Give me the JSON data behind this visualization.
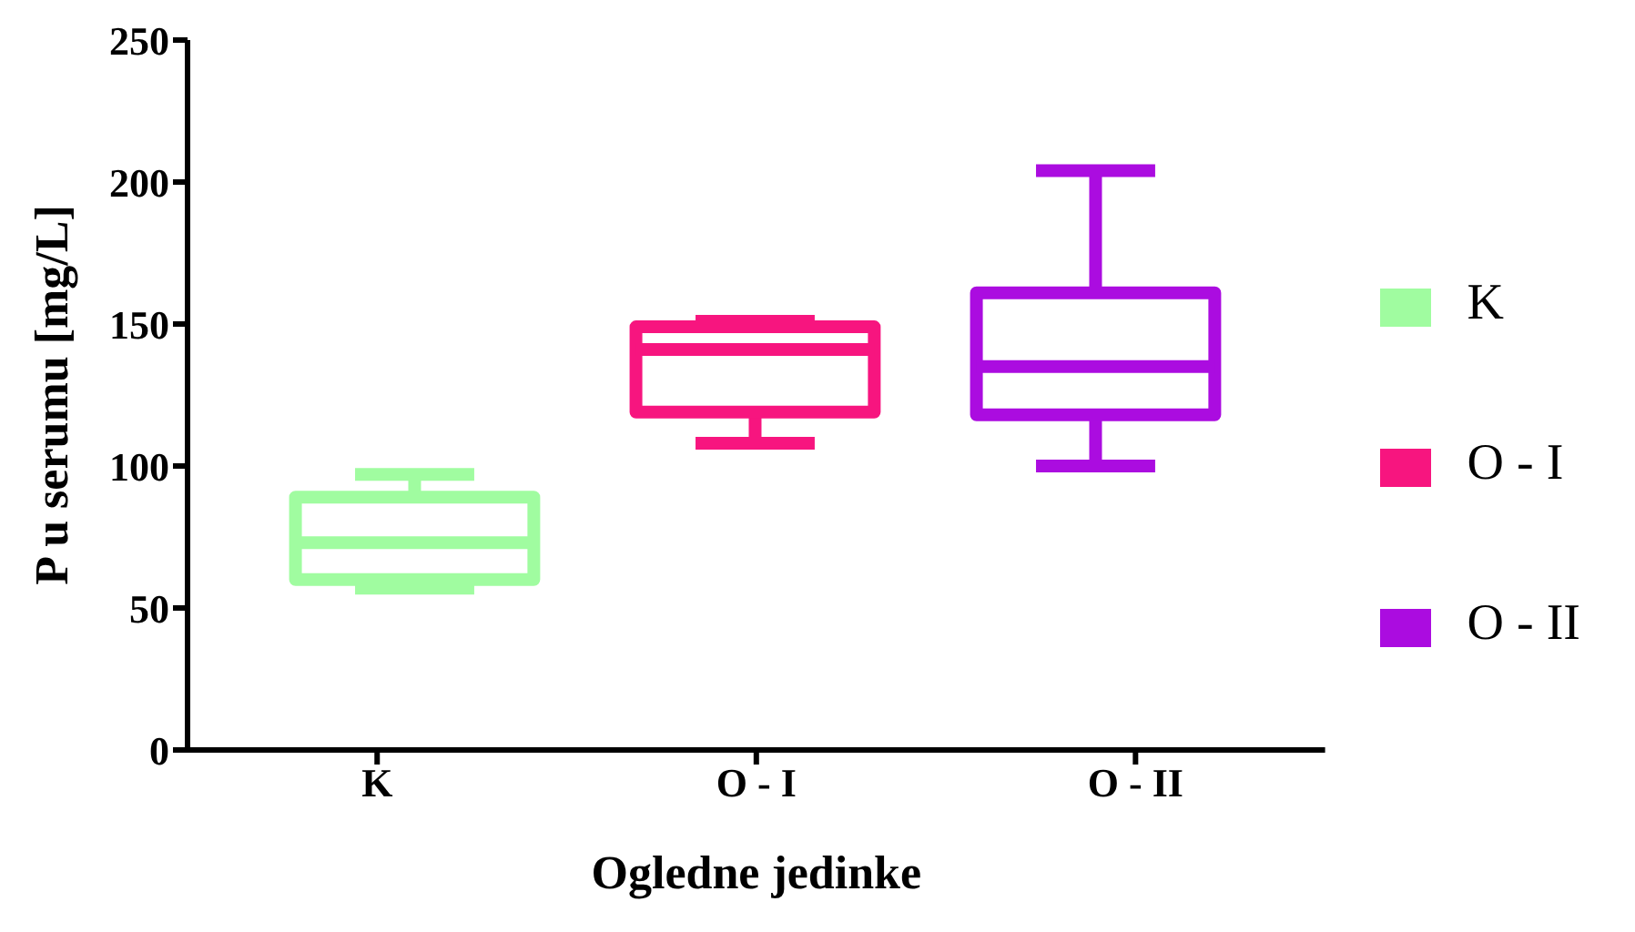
{
  "chart_data": {
    "type": "box",
    "xlabel": "Ogledne jedinke",
    "ylabel": "P u serumu [mg/L]",
    "categories": [
      "K",
      "O - I",
      "O - II"
    ],
    "series": [
      {
        "name": "K",
        "color": "#a0fca0",
        "boxes": [
          {
            "low": 57,
            "q1": 60,
            "median": 73,
            "q3": 89,
            "high": 97
          },
          null,
          null
        ]
      },
      {
        "name": "O - I",
        "color": "#f7157f",
        "boxes": [
          null,
          {
            "low": 108,
            "q1": 119,
            "median": 141,
            "q3": 149,
            "high": 151
          },
          null
        ]
      },
      {
        "name": "O - II",
        "color": "#ab0ce0",
        "boxes": [
          null,
          null,
          {
            "low": 100,
            "q1": 118,
            "median": 135,
            "q3": 161,
            "high": 204
          }
        ]
      }
    ],
    "ylim": [
      0,
      250
    ],
    "yticks": [
      0,
      50,
      100,
      150,
      200,
      250
    ],
    "grid": false,
    "legend": "right"
  }
}
